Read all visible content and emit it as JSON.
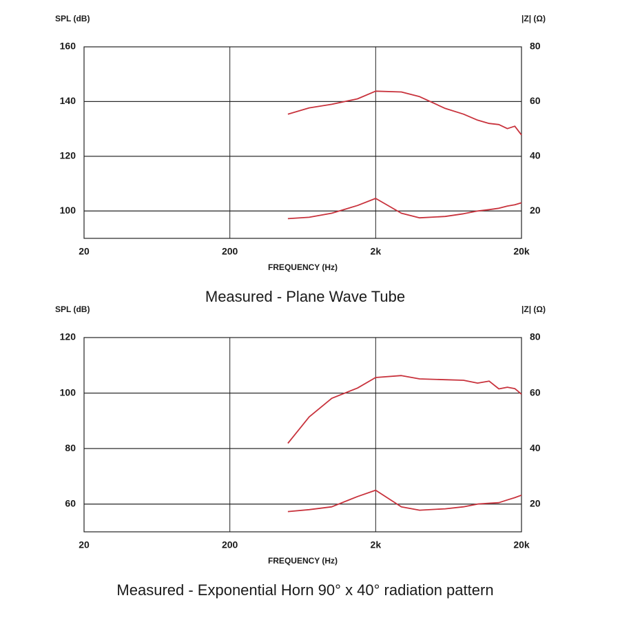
{
  "chart_data": [
    {
      "type": "line",
      "caption": "Measured - Plane Wave Tube",
      "ylabel": "SPL (dB)",
      "y2label": "|Z| (Ω)",
      "xlabel": "FREQUENCY (Hz)",
      "xscale": "log",
      "grid": true,
      "xlim": [
        20,
        20000
      ],
      "xticks": [
        20,
        200,
        {
          "value": 2000,
          "label": "2k"
        },
        {
          "value": 20000,
          "label": "20k"
        }
      ],
      "ylim": [
        90,
        160
      ],
      "yticks": [
        100,
        120,
        140,
        160
      ],
      "y2lim": [
        10,
        80
      ],
      "y2ticks": [
        20,
        40,
        60,
        80
      ],
      "x": [
        500,
        700,
        1000,
        1500,
        2000,
        3000,
        4000,
        6000,
        8000,
        10000,
        12000,
        14000,
        16000,
        18000,
        20000
      ],
      "series": [
        {
          "color": "#c8323c",
          "axis": "y",
          "values": [
            135.4,
            137.7,
            139,
            141,
            143.8,
            143.5,
            141.8,
            137.5,
            135.4,
            133.2,
            132,
            131.6,
            130.1,
            131,
            127.8
          ]
        },
        {
          "color": "#c8323c",
          "axis": "y2",
          "values": [
            17.2,
            17.7,
            19.2,
            22,
            24.6,
            19.2,
            17.5,
            18,
            19,
            20,
            20.5,
            21,
            21.8,
            22.3,
            23
          ]
        }
      ]
    },
    {
      "type": "line",
      "caption": "Measured - Exponential Horn 90° x 40° radiation pattern",
      "ylabel": "SPL (dB)",
      "y2label": "|Z| (Ω)",
      "xlabel": "FREQUENCY (Hz)",
      "xscale": "log",
      "grid": true,
      "xlim": [
        20,
        20000
      ],
      "xticks": [
        20,
        200,
        {
          "value": 2000,
          "label": "2k"
        },
        {
          "value": 20000,
          "label": "20k"
        }
      ],
      "ylim": [
        50,
        120
      ],
      "yticks": [
        60,
        80,
        100,
        120
      ],
      "y2lim": [
        10,
        80
      ],
      "y2ticks": [
        20,
        40,
        60,
        80
      ],
      "x": [
        500,
        700,
        1000,
        1500,
        2000,
        3000,
        4000,
        6000,
        8000,
        10000,
        12000,
        14000,
        16000,
        18000,
        20000
      ],
      "series": [
        {
          "color": "#c8323c",
          "axis": "y",
          "values": [
            81.9,
            91.4,
            98.1,
            101.8,
            105.6,
            106.3,
            105.1,
            104.8,
            104.6,
            103.6,
            104.3,
            101.5,
            102.1,
            101.6,
            99.6
          ]
        },
        {
          "color": "#c8323c",
          "axis": "y2",
          "values": [
            17.3,
            18,
            19,
            22.7,
            25,
            19,
            17.8,
            18.3,
            19,
            20,
            20.3,
            20.5,
            21.5,
            22.3,
            23.2
          ]
        }
      ]
    }
  ]
}
